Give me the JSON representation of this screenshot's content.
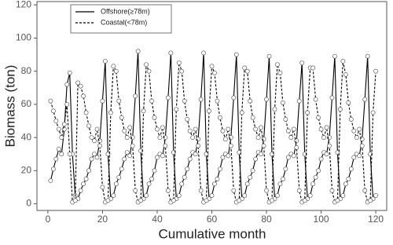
{
  "chart_data": {
    "type": "line",
    "xlabel": "Cumulative month",
    "ylabel": "Biomass (ton)",
    "x": [
      1,
      2,
      3,
      4,
      5,
      6,
      7,
      8,
      9,
      10,
      11,
      12,
      13,
      14,
      15,
      16,
      17,
      18,
      19,
      20,
      21,
      22,
      23,
      24,
      25,
      26,
      27,
      28,
      29,
      30,
      31,
      32,
      33,
      34,
      35,
      36,
      37,
      38,
      39,
      40,
      41,
      42,
      43,
      44,
      45,
      46,
      47,
      48,
      49,
      50,
      51,
      52,
      53,
      54,
      55,
      56,
      57,
      58,
      59,
      60,
      61,
      62,
      63,
      64,
      65,
      66,
      67,
      68,
      69,
      70,
      71,
      72,
      73,
      74,
      75,
      76,
      77,
      78,
      79,
      80,
      81,
      82,
      83,
      84,
      85,
      86,
      87,
      88,
      89,
      90,
      91,
      92,
      93,
      94,
      95,
      96,
      97,
      98,
      99,
      100,
      101,
      102,
      103,
      104,
      105,
      106,
      107,
      108,
      109,
      110,
      111,
      112,
      113,
      114,
      115,
      116,
      117,
      118,
      119,
      120
    ],
    "series": [
      {
        "name": "Offshore(≥78m)",
        "color": "#000000",
        "dash": false,
        "values": [
          14,
          21,
          27,
          33,
          30,
          45,
          72,
          79,
          30,
          5,
          3,
          8,
          12,
          15,
          20,
          27,
          30,
          28,
          38,
          62,
          86,
          30,
          3,
          5,
          12,
          16,
          21,
          27,
          31,
          29,
          40,
          65,
          92,
          32,
          3,
          5,
          12,
          15,
          20,
          28,
          30,
          29,
          40,
          64,
          91,
          31,
          3,
          5,
          12,
          16,
          21,
          27,
          31,
          30,
          39,
          63,
          91,
          30,
          3,
          5,
          12,
          15,
          21,
          28,
          30,
          29,
          40,
          64,
          90,
          31,
          3,
          5,
          12,
          16,
          20,
          27,
          31,
          30,
          39,
          63,
          89,
          30,
          3,
          5,
          12,
          15,
          21,
          28,
          30,
          29,
          38,
          62,
          85,
          30,
          3,
          5,
          12,
          16,
          20,
          27,
          31,
          30,
          40,
          64,
          89,
          31,
          3,
          5,
          12,
          15,
          21,
          28,
          30,
          29,
          39,
          63,
          89,
          30,
          3,
          5
        ]
      },
      {
        "name": "Coastal(<78m)",
        "color": "#000000",
        "dash": true,
        "values": [
          62,
          56,
          50,
          45,
          40,
          48,
          60,
          30,
          1,
          2,
          73,
          71,
          65,
          55,
          47,
          40,
          38,
          45,
          35,
          10,
          1,
          2,
          55,
          83,
          80,
          62,
          52,
          44,
          40,
          46,
          35,
          8,
          1,
          2,
          56,
          84,
          80,
          62,
          52,
          45,
          40,
          46,
          35,
          8,
          1,
          2,
          57,
          85,
          80,
          62,
          51,
          44,
          40,
          45,
          35,
          8,
          1,
          2,
          56,
          83,
          79,
          62,
          52,
          44,
          39,
          45,
          35,
          8,
          1,
          2,
          55,
          82,
          80,
          62,
          52,
          45,
          40,
          46,
          35,
          8,
          1,
          2,
          57,
          84,
          79,
          61,
          51,
          44,
          40,
          45,
          34,
          8,
          1,
          2,
          55,
          82,
          82,
          63,
          52,
          45,
          40,
          46,
          35,
          8,
          1,
          2,
          57,
          86,
          78,
          61,
          51,
          44,
          40,
          45,
          35,
          8,
          1,
          2,
          55,
          80
        ]
      }
    ],
    "xlim": [
      -4,
      124
    ],
    "ylim": [
      -4,
      122
    ],
    "xticks": [
      0,
      20,
      40,
      60,
      80,
      100,
      120
    ],
    "yticks": [
      0,
      20,
      40,
      60,
      80,
      100,
      120
    ],
    "legend": "upper left"
  }
}
